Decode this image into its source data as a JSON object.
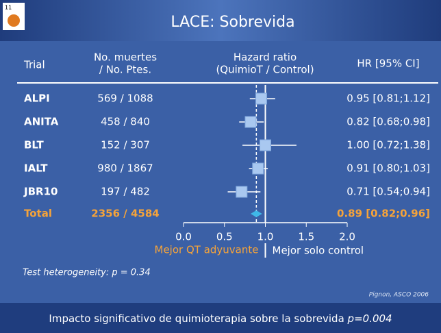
{
  "slide_number": "11",
  "title": "LACE: Sobrevida",
  "chart_data": {
    "type": "forest",
    "headers": {
      "trial": "Trial",
      "deaths_1": "No. muertes",
      "deaths_2": "/ No. Ptes.",
      "hr_1": "Hazard ratio",
      "hr_2": "(QuimioT / Control)",
      "ci": "HR [95% CI]"
    },
    "categories": [
      "ALPI",
      "ANITA",
      "BLT",
      "IALT",
      "JBR10"
    ],
    "deaths": [
      "569 / 1088",
      "458 / 840",
      "152 / 307",
      "980 / 1867",
      "197 / 482"
    ],
    "values": [
      0.95,
      0.82,
      1.0,
      0.91,
      0.71
    ],
    "lower": [
      0.81,
      0.68,
      0.72,
      0.8,
      0.54
    ],
    "upper": [
      1.12,
      0.98,
      1.38,
      1.03,
      0.94
    ],
    "value_labels": [
      "0.95 [0.81;1.12]",
      "0.82 [0.68;0.98]",
      "1.00 [0.72;1.38]",
      "0.91 [0.80;1.03]",
      "0.71 [0.54;0.94]"
    ],
    "total": {
      "name": "Total",
      "deaths": "2356 / 4584",
      "value": 0.89,
      "lower": 0.82,
      "upper": 0.96,
      "value_label": "0.89 [0.82;0.96]",
      "color": "#f5a33a"
    },
    "reference": 1,
    "color": "#a9c8f0",
    "xlim": [
      0,
      2
    ],
    "xticks": [
      {
        "value": 0,
        "label": "0.0"
      },
      {
        "value": 0.5,
        "label": "0.5"
      },
      {
        "value": 1,
        "label": "1.0"
      },
      {
        "value": 1.5,
        "label": "1.5"
      },
      {
        "value": 2,
        "label": "2.0"
      }
    ],
    "left_label": "Mejor QT adyuvante",
    "right_label": "Mejor solo control",
    "note": "Test  heterogeneity: p = 0.34",
    "source": "Pignon, ASCO 2006"
  },
  "footer": {
    "text": "Impacto significativo de quimioterapia sobre la sobrevida ",
    "p": "p=0.004"
  }
}
